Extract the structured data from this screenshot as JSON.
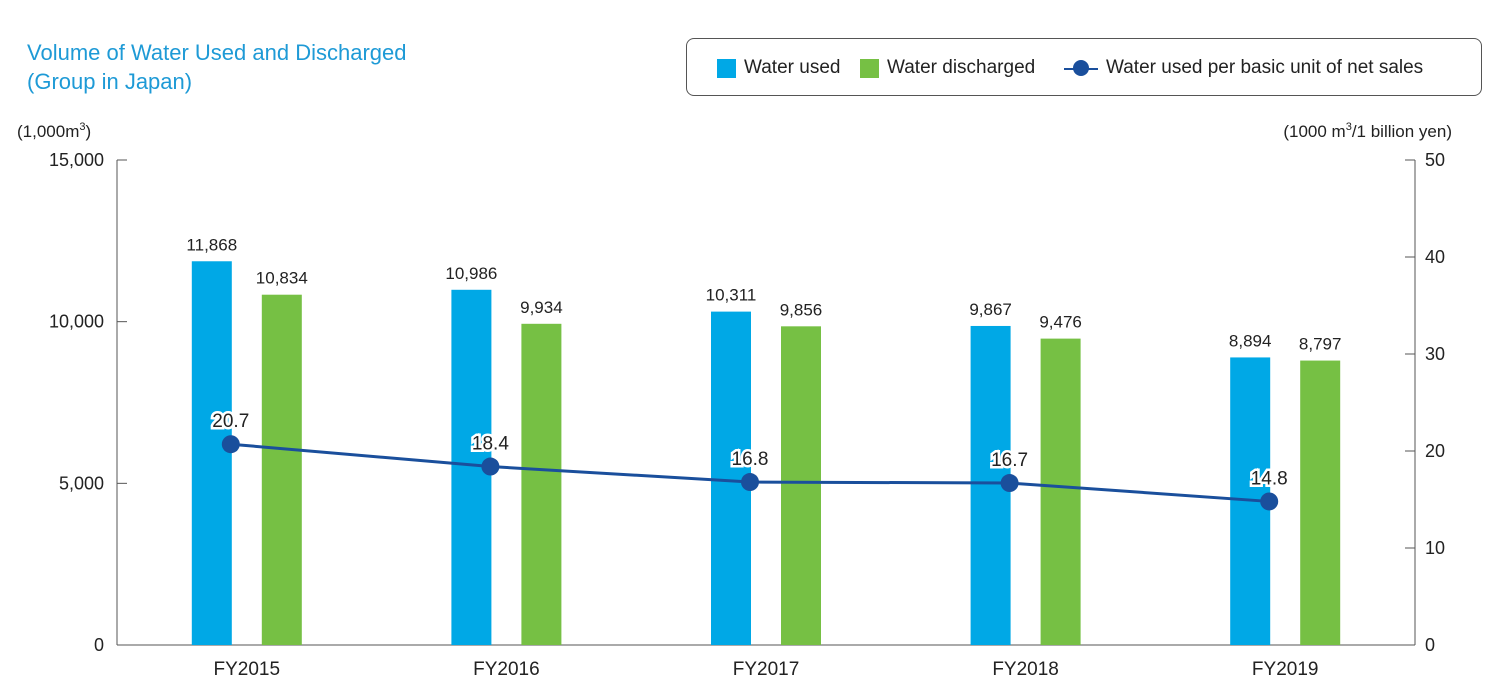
{
  "title": {
    "line1": "Volume of Water Used and Discharged",
    "line2": "(Group in Japan)"
  },
  "legend": {
    "water_used": "Water used",
    "water_discharged": "Water discharged",
    "per_unit": "Water used per basic unit of net sales"
  },
  "colors": {
    "water_used": "#00a8e6",
    "water_discharged": "#76c044",
    "per_unit": "#1a4f9c",
    "title": "#1e9ad6"
  },
  "chart_data": {
    "type": "bar",
    "categories": [
      "FY2015",
      "FY2016",
      "FY2017",
      "FY2018",
      "FY2019"
    ],
    "series": [
      {
        "name": "Water used",
        "axis": "left",
        "values": [
          11868,
          10986,
          10311,
          9867,
          8894
        ]
      },
      {
        "name": "Water discharged",
        "axis": "left",
        "values": [
          10834,
          9934,
          9856,
          9476,
          8797
        ]
      },
      {
        "name": "Water used per basic unit of net sales",
        "axis": "right",
        "type": "line",
        "values": [
          20.7,
          18.4,
          16.8,
          16.7,
          14.8
        ]
      }
    ],
    "data_labels": {
      "water_used": [
        "11,868",
        "10,986",
        "10,311",
        "9,867",
        "8,894"
      ],
      "water_discharged": [
        "10,834",
        "9,934",
        "9,856",
        "9,476",
        "8,797"
      ],
      "per_unit": [
        "20.7",
        "18.4",
        "16.8",
        "16.7",
        "14.8"
      ]
    },
    "y_left": {
      "unit_label": "(1,000m",
      "unit_sup": "3",
      "unit_close": ")",
      "ylim": [
        0,
        15000
      ],
      "ticks": [
        0,
        5000,
        10000,
        15000
      ],
      "tick_labels": [
        "0",
        "5,000",
        "10,000",
        "15,000"
      ]
    },
    "y_right": {
      "unit_label": "(1000 m",
      "unit_sup": "3",
      "unit_close": "/1 billion yen)",
      "ylim": [
        0,
        50
      ],
      "ticks": [
        0,
        10,
        20,
        30,
        40,
        50
      ],
      "tick_labels": [
        "0",
        "10",
        "20",
        "30",
        "40",
        "50"
      ]
    },
    "grid": false,
    "legend_position": "top-right"
  }
}
